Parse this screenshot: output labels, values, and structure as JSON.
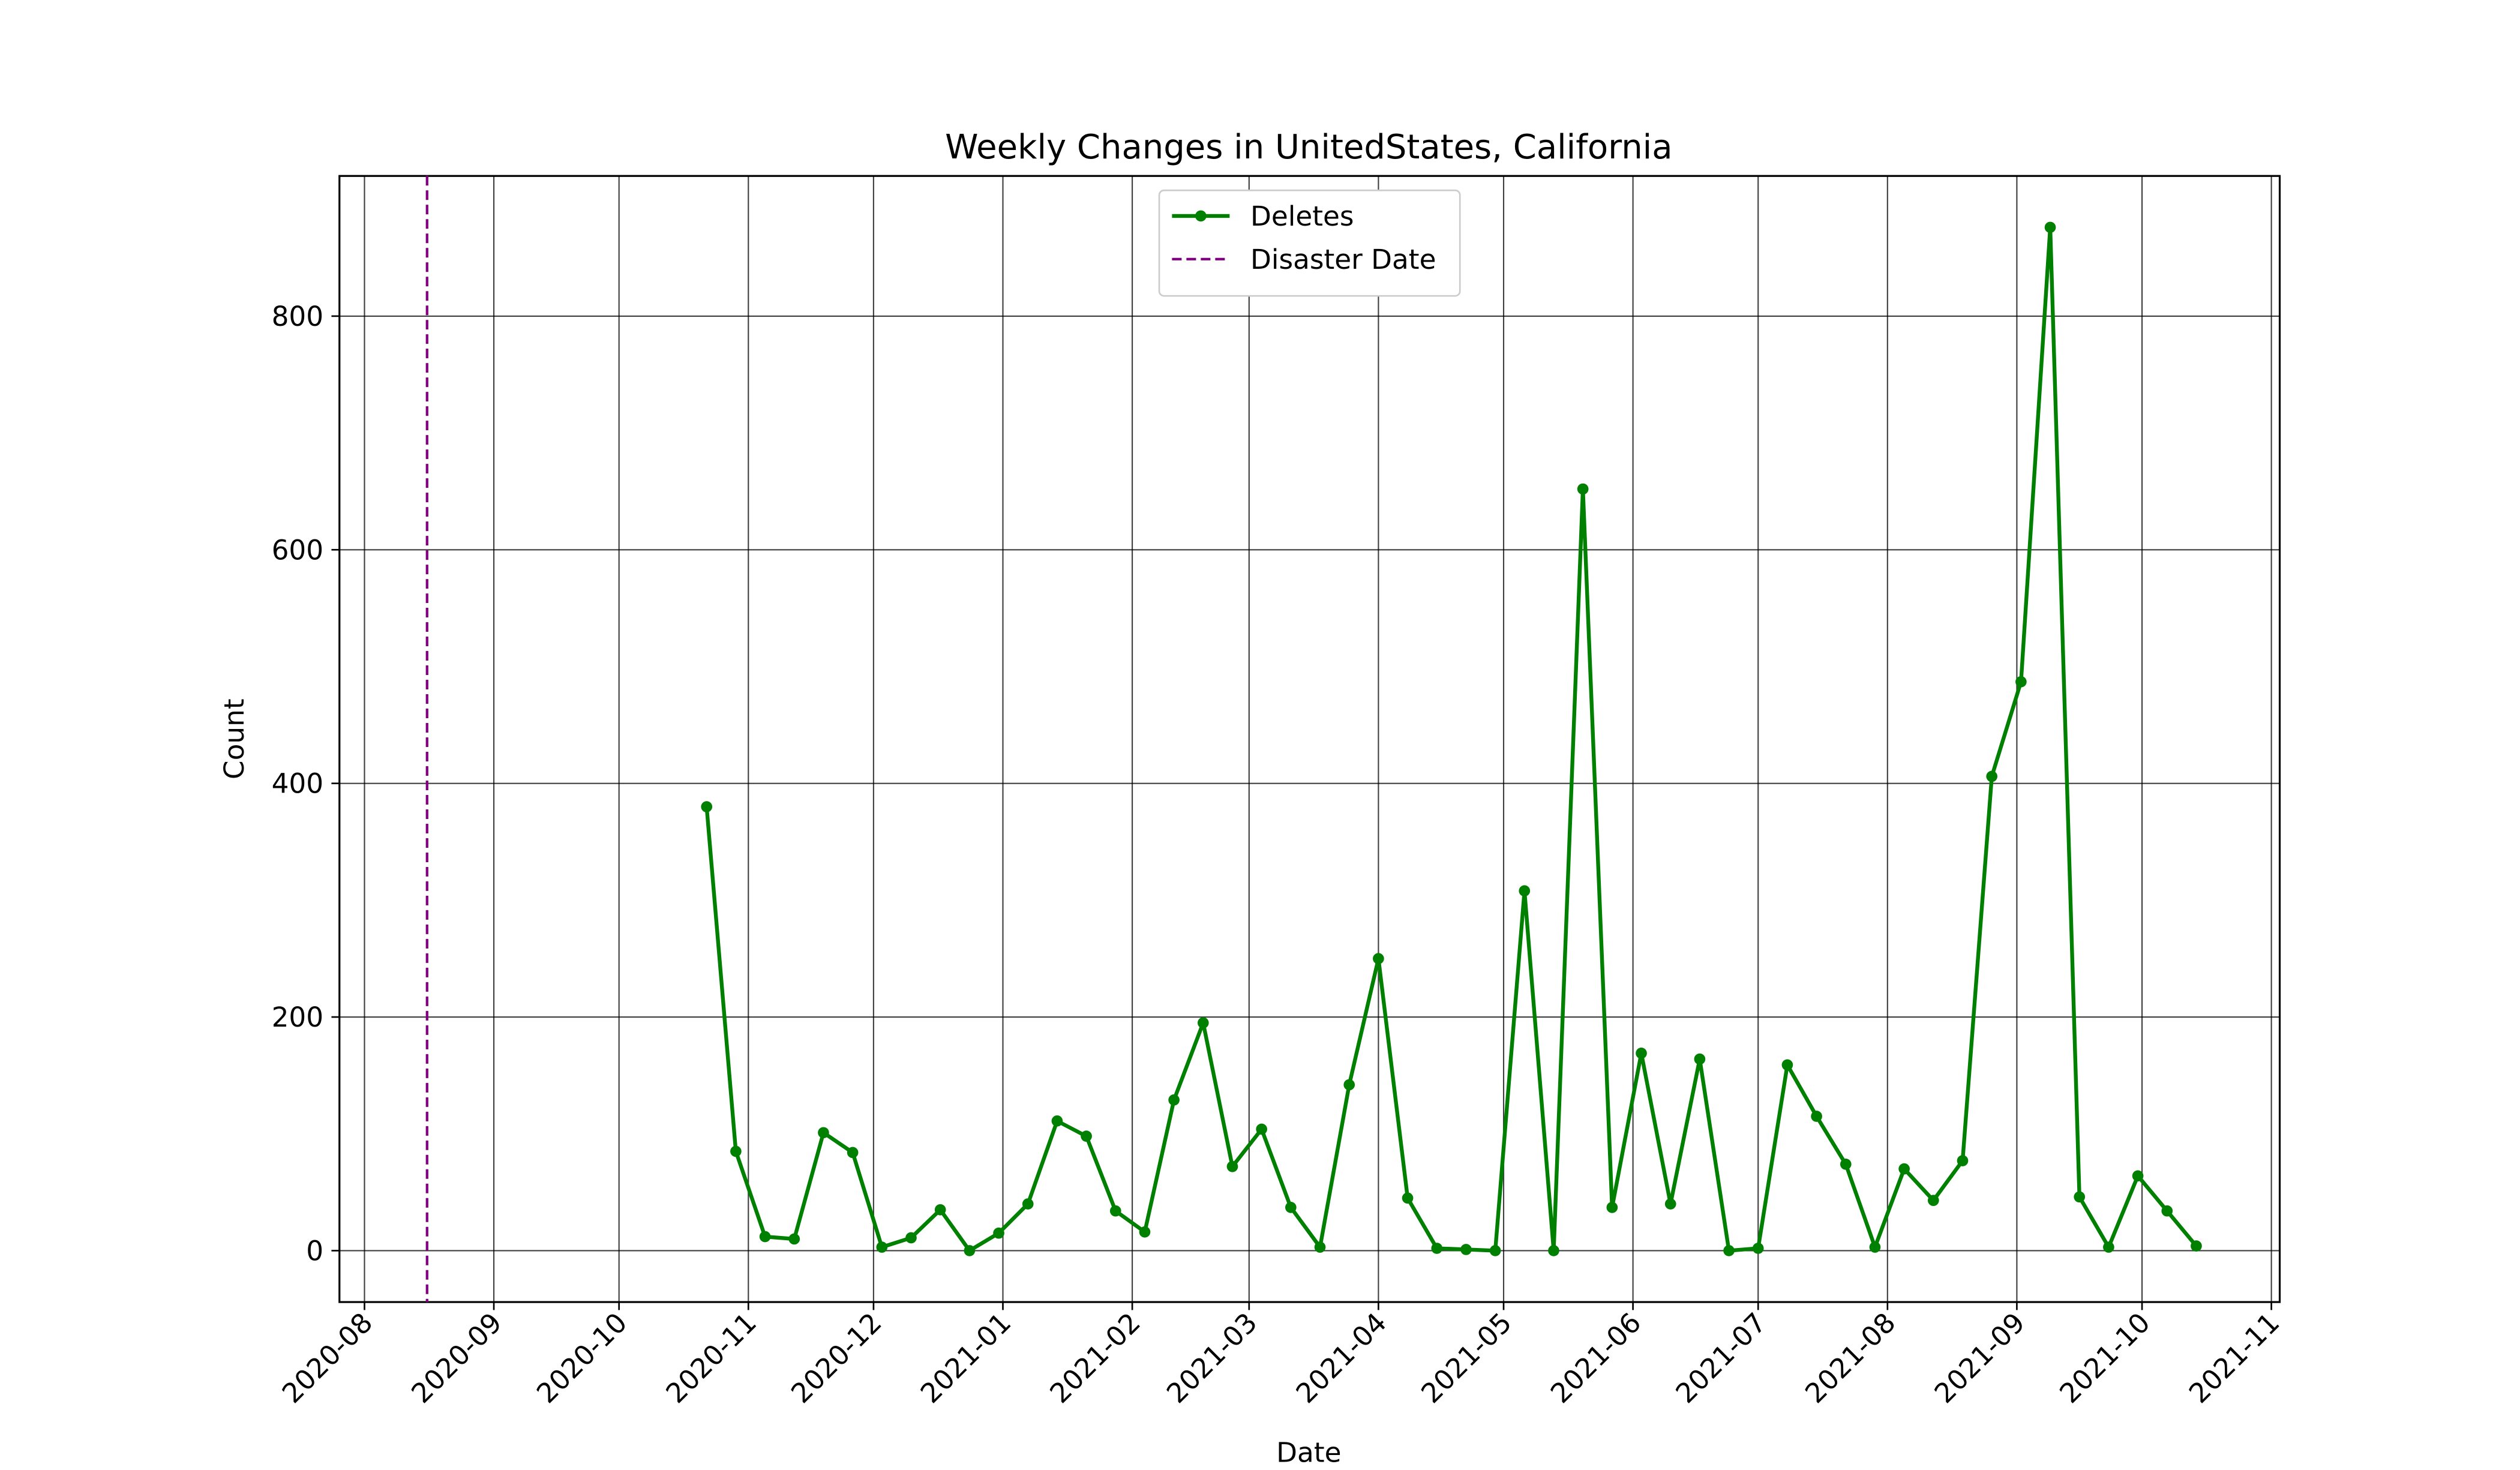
{
  "chart_data": {
    "type": "line",
    "title": "Weekly Changes in UnitedStates, California",
    "xlabel": "Date",
    "ylabel": "Count",
    "x": [
      "2020-10-22",
      "2020-10-29",
      "2020-11-05",
      "2020-11-12",
      "2020-11-19",
      "2020-11-26",
      "2020-12-03",
      "2020-12-10",
      "2020-12-17",
      "2020-12-24",
      "2020-12-31",
      "2021-01-07",
      "2021-01-14",
      "2021-01-21",
      "2021-01-28",
      "2021-02-04",
      "2021-02-11",
      "2021-02-18",
      "2021-02-25",
      "2021-03-04",
      "2021-03-11",
      "2021-03-18",
      "2021-03-25",
      "2021-04-01",
      "2021-04-08",
      "2021-04-15",
      "2021-04-22",
      "2021-04-29",
      "2021-05-06",
      "2021-05-13",
      "2021-05-20",
      "2021-05-27",
      "2021-06-03",
      "2021-06-10",
      "2021-06-17",
      "2021-06-24",
      "2021-07-01",
      "2021-07-08",
      "2021-07-15",
      "2021-07-22",
      "2021-07-29",
      "2021-08-05",
      "2021-08-12",
      "2021-08-19",
      "2021-08-26",
      "2021-09-02",
      "2021-09-09",
      "2021-09-16",
      "2021-09-23",
      "2021-09-30",
      "2021-10-07",
      "2021-10-14"
    ],
    "series": [
      {
        "name": "Deletes",
        "color": "#008000",
        "values": [
          380,
          85,
          12,
          10,
          101,
          84,
          3,
          11,
          35,
          0,
          15,
          40,
          111,
          98,
          34,
          16,
          129,
          195,
          72,
          104,
          37,
          3,
          142,
          250,
          45,
          2,
          1,
          0,
          308,
          0,
          652,
          37,
          169,
          40,
          164,
          0,
          2,
          159,
          115,
          74,
          3,
          70,
          43,
          77,
          406,
          487,
          876,
          46,
          3,
          64,
          34,
          4
        ]
      }
    ],
    "vlines": [
      {
        "name": "Disaster Date",
        "x": "2020-08-16",
        "color": "#800080"
      }
    ],
    "xlim": [
      "2020-07-26",
      "2021-11-03"
    ],
    "xticks": [
      {
        "value": "2020-08-01",
        "label": "2020-08"
      },
      {
        "value": "2020-09-01",
        "label": "2020-09"
      },
      {
        "value": "2020-10-01",
        "label": "2020-10"
      },
      {
        "value": "2020-11-01",
        "label": "2020-11"
      },
      {
        "value": "2020-12-01",
        "label": "2020-12"
      },
      {
        "value": "2021-01-01",
        "label": "2021-01"
      },
      {
        "value": "2021-02-01",
        "label": "2021-02"
      },
      {
        "value": "2021-03-01",
        "label": "2021-03"
      },
      {
        "value": "2021-04-01",
        "label": "2021-04"
      },
      {
        "value": "2021-05-01",
        "label": "2021-05"
      },
      {
        "value": "2021-06-01",
        "label": "2021-06"
      },
      {
        "value": "2021-07-01",
        "label": "2021-07"
      },
      {
        "value": "2021-08-01",
        "label": "2021-08"
      },
      {
        "value": "2021-09-01",
        "label": "2021-09"
      },
      {
        "value": "2021-10-01",
        "label": "2021-10"
      },
      {
        "value": "2021-11-01",
        "label": "2021-11"
      }
    ],
    "ylim": [
      -44,
      920
    ],
    "yticks": [
      0,
      200,
      400,
      600,
      800
    ],
    "grid": true,
    "legend": "upper center"
  }
}
